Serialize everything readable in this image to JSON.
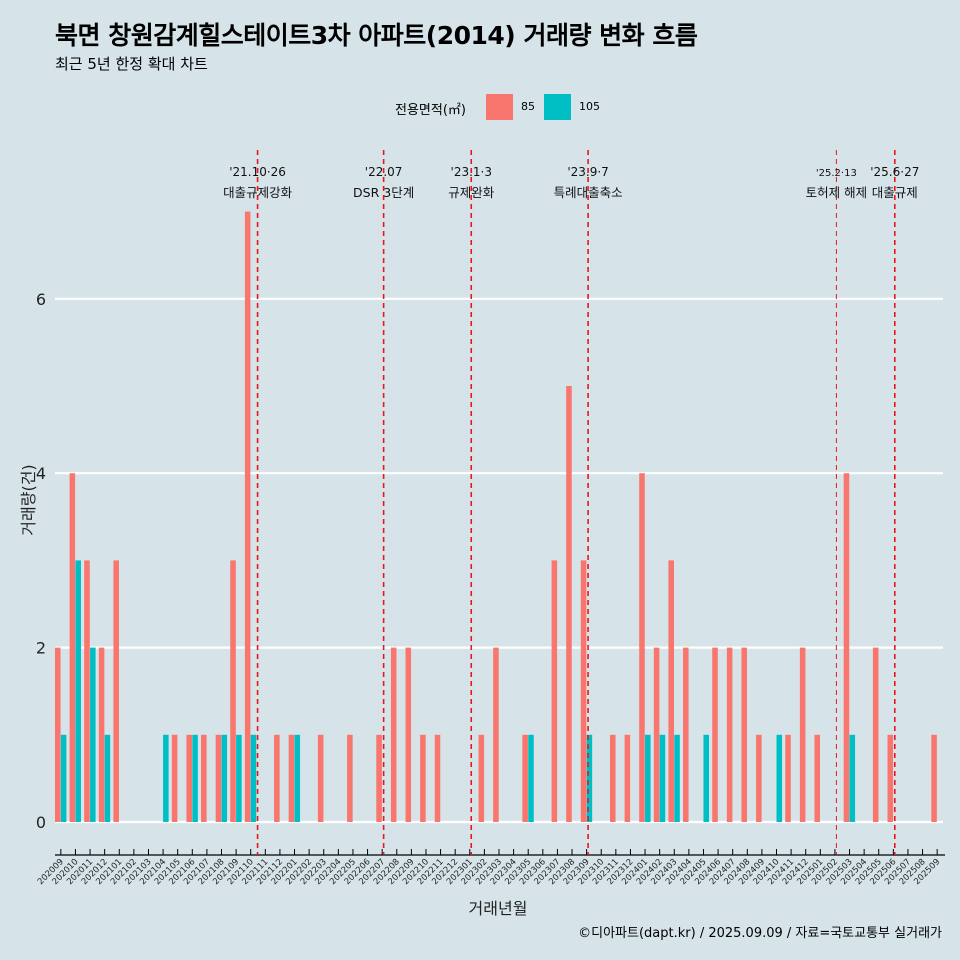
{
  "title": "북면 창원감계힐스테이트3차 아파트(2014) 거래량 변화 흐름",
  "subtitle": "최근 5년 한정 확대 차트",
  "caption": "©디아파트(dapt.kr) / 2025.09.09 / 자료=국토교통부 실거래가",
  "legend": {
    "title": "전용면적(㎡)",
    "items": [
      {
        "label": "85",
        "color": "#f8766d"
      },
      {
        "label": "105",
        "color": "#00bfc4"
      }
    ]
  },
  "chart_data": {
    "type": "bar",
    "title": "북면 창원감계힐스테이트3차 아파트(2014) 거래량 변화 흐름",
    "xlabel": "거래년월",
    "ylabel": "거래량(건)",
    "ylim": [
      0,
      7
    ],
    "yticks": [
      0,
      2,
      4,
      6
    ],
    "categories": [
      "202009",
      "202010",
      "202011",
      "202012",
      "202101",
      "202102",
      "202103",
      "202104",
      "202105",
      "202106",
      "202107",
      "202108",
      "202109",
      "202110",
      "202111",
      "202112",
      "202201",
      "202202",
      "202203",
      "202204",
      "202205",
      "202206",
      "202207",
      "202208",
      "202209",
      "202210",
      "202211",
      "202212",
      "202301",
      "202302",
      "202303",
      "202304",
      "202305",
      "202306",
      "202307",
      "202308",
      "202309",
      "202310",
      "202311",
      "202312",
      "202401",
      "202402",
      "202403",
      "202404",
      "202405",
      "202406",
      "202407",
      "202408",
      "202409",
      "202410",
      "202411",
      "202412",
      "202501",
      "202502",
      "202503",
      "202504",
      "202505",
      "202506",
      "202507",
      "202508",
      "202509"
    ],
    "series": [
      {
        "name": "85",
        "color": "#f8766d",
        "values": [
          2,
          4,
          3,
          2,
          3,
          0,
          0,
          0,
          1,
          1,
          1,
          1,
          3,
          7,
          0,
          1,
          1,
          0,
          1,
          0,
          1,
          0,
          1,
          2,
          2,
          1,
          1,
          0,
          0,
          1,
          2,
          0,
          1,
          0,
          3,
          5,
          3,
          0,
          1,
          1,
          4,
          2,
          3,
          2,
          0,
          2,
          2,
          2,
          1,
          0,
          1,
          2,
          1,
          0,
          4,
          0,
          2,
          1,
          0,
          0,
          1
        ]
      },
      {
        "name": "105",
        "color": "#00bfc4",
        "values": [
          1,
          3,
          2,
          1,
          0,
          0,
          0,
          1,
          0,
          1,
          0,
          1,
          1,
          1,
          0,
          0,
          1,
          0,
          0,
          0,
          0,
          0,
          0,
          0,
          0,
          0,
          0,
          0,
          0,
          0,
          0,
          0,
          1,
          0,
          0,
          0,
          1,
          0,
          0,
          0,
          1,
          1,
          1,
          0,
          1,
          0,
          0,
          0,
          0,
          1,
          0,
          0,
          0,
          0,
          1,
          0,
          0,
          0,
          0,
          0,
          0
        ]
      }
    ],
    "events": [
      {
        "date": "'21.10·26",
        "label": "대출규제강화",
        "month": "202110",
        "offset": 0.87
      },
      {
        "date": "'22.07",
        "label": "DSR 3단계",
        "month": "202207",
        "offset": 0.5
      },
      {
        "date": "'23.1·3",
        "label": "규제완화",
        "month": "202301",
        "offset": 0.5
      },
      {
        "date": "'23.9·7",
        "label": "특례대출축소",
        "month": "202309",
        "offset": 0.5
      },
      {
        "date": "'25.2·13",
        "label": "토허제 해제",
        "month": "202502",
        "offset": 0.5
      },
      {
        "date": "'25.6·27",
        "label": "대출규제",
        "month": "202506",
        "offset": 0.5
      }
    ]
  }
}
